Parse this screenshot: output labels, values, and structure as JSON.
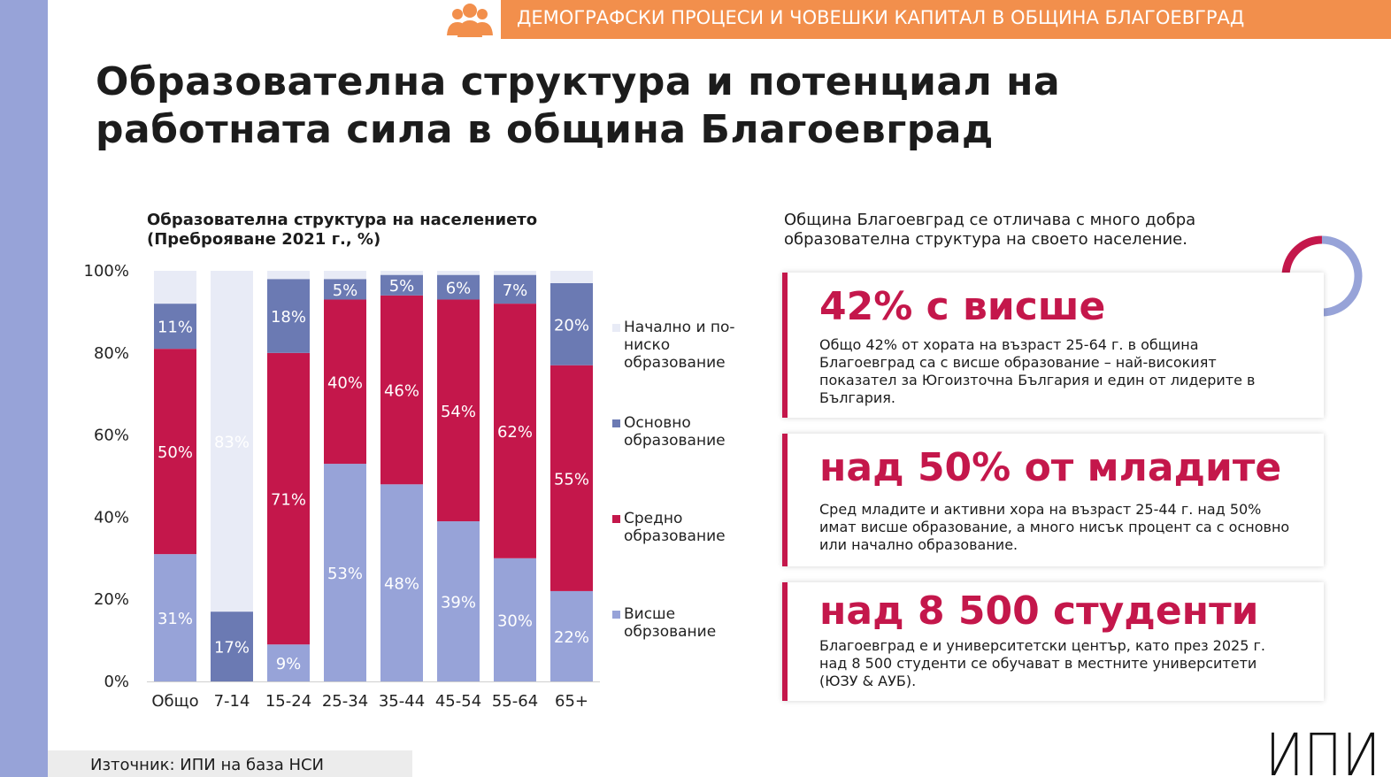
{
  "header": {
    "banner_text": "ДЕМОГРАФСКИ ПРОЦЕСИ И ЧОВЕШКИ КАПИТАЛ В ОБЩИНА БЛАГОЕВГРАД",
    "icon": "people-group-icon"
  },
  "page_title": "Образователна структура и потенциал на работната сила в община Благоевград",
  "chart_data": {
    "type": "bar",
    "stacked": true,
    "title": "Образователна структура на населението (Преброяване 2021 г., %)",
    "categories": [
      "Общо",
      "7-14",
      "15-24",
      "25-34",
      "35-44",
      "45-54",
      "55-64",
      "65+"
    ],
    "ylim": [
      0,
      100
    ],
    "y_ticks": [
      "0%",
      "20%",
      "40%",
      "60%",
      "80%",
      "100%"
    ],
    "legend_position": "right",
    "grid": false,
    "series": [
      {
        "name": "Висше обрзование",
        "color": "#97a3d8",
        "values": [
          31,
          0,
          9,
          53,
          48,
          39,
          30,
          22
        ],
        "labels": [
          "31%",
          "",
          "9%",
          "53%",
          "48%",
          "39%",
          "30%",
          "22%"
        ]
      },
      {
        "name": "Основно образование",
        "color": "#6b7ab3",
        "values": [
          11,
          17,
          18,
          5,
          5,
          6,
          7,
          20
        ],
        "labels": [
          "11%",
          "17%",
          "18%",
          "5%",
          "5%",
          "6%",
          "7%",
          "20%"
        ]
      },
      {
        "name": "Средно образование",
        "color": "#c4174b",
        "values": [
          50,
          0,
          71,
          40,
          46,
          54,
          62,
          55
        ],
        "labels": [
          "50%",
          "",
          "71%",
          "40%",
          "46%",
          "54%",
          "62%",
          "55%"
        ]
      },
      {
        "name": "Начално и по-ниско образование",
        "color": "#e8ebf6",
        "values": [
          8,
          83,
          2,
          2,
          1,
          1,
          1,
          3
        ],
        "labels": [
          "",
          "83%",
          "",
          "",
          "",
          "",
          "",
          ""
        ]
      }
    ],
    "stack_order": [
      "Висше обрзование",
      "Средно образование",
      "Основно образование",
      "Начално и по-ниско образование"
    ]
  },
  "legend": [
    {
      "label": "Начално и по-ниско образование",
      "color": "#e8ebf6"
    },
    {
      "label": "Основно образование",
      "color": "#6b7ab3"
    },
    {
      "label": "Средно образование",
      "color": "#c4174b"
    },
    {
      "label": "Висше обрзование",
      "color": "#97a3d8"
    }
  ],
  "intro_text": "Община Благоевград се отличава с много добра образователна структура на своето население.",
  "donut": {
    "share": 0.42,
    "color_main": "#c4174b",
    "color_rest": "#97a3d8"
  },
  "cards": [
    {
      "heading": "42% с висше",
      "body": "Общо 42% от хората на възраст 25-64 г. в община Благоевград са с висше образование – най-високият показател за Югоизточна България и един от лидерите в България."
    },
    {
      "heading": "над 50% от младите",
      "body": "Сред младите и активни хора на възраст 25-44 г. над 50% имат висше образование, а много нисък процент са с основно или начално образование."
    },
    {
      "heading": "над 8 500 студенти",
      "body": "Благоевград е и университетски център, като през 2025 г. над 8 500 студенти се обучават в местните университети (ЮЗУ & АУБ)."
    }
  ],
  "source": "Източник: ИПИ на база НСИ",
  "logo": {
    "text": "ИПИ"
  },
  "colors": {
    "accent": "#c4174b",
    "banner": "#f28f4c",
    "stripe": "#97a3d8"
  }
}
